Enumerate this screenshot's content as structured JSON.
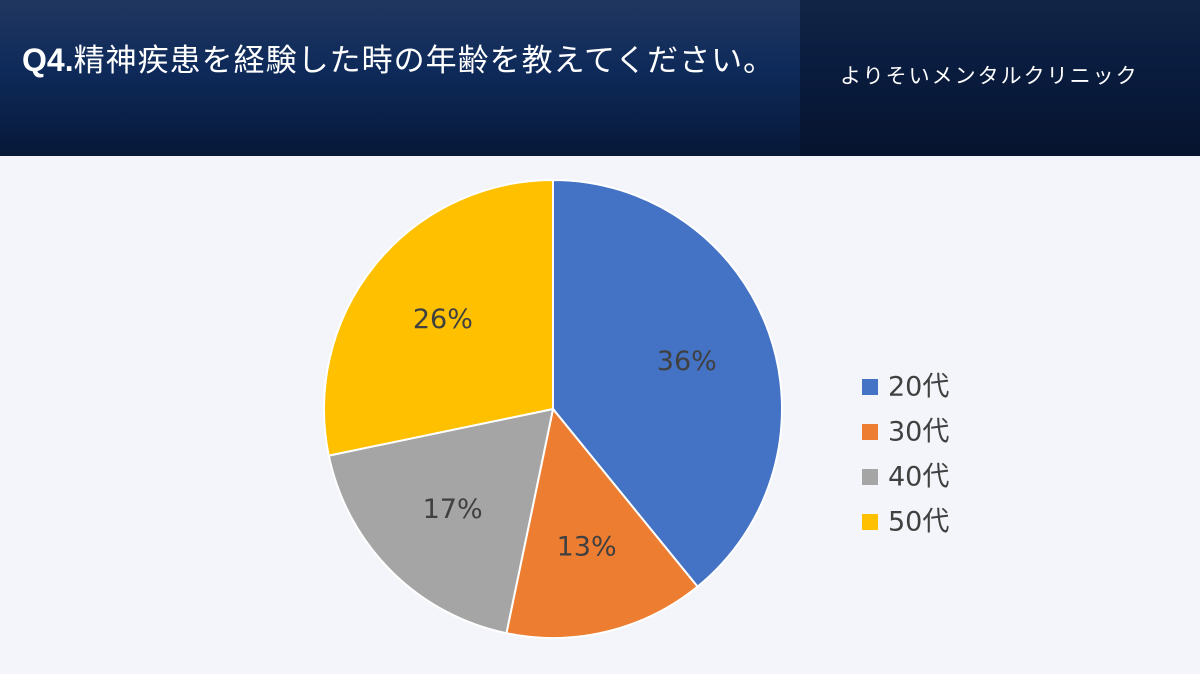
{
  "header": {
    "question_number": "Q4.",
    "question_text": "精神疾患を経験した時の年齢を教えてください。",
    "clinic_name": "よりそいメンタルクリニック"
  },
  "chart_data": {
    "type": "pie",
    "categories": [
      "20代",
      "30代",
      "40代",
      "50代"
    ],
    "values": [
      36,
      13,
      17,
      26
    ],
    "value_labels": [
      "36%",
      "13%",
      "17%",
      "26%"
    ],
    "colors": [
      "#4472c4",
      "#ed7d31",
      "#a5a5a5",
      "#ffc000"
    ],
    "legend_position": "right",
    "start_angle": "top",
    "direction": "clockwise"
  }
}
